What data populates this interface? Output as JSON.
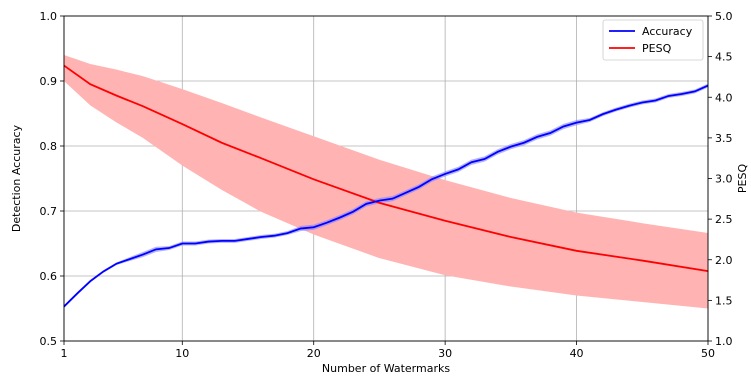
{
  "chart_data": {
    "type": "line",
    "xlabel": "Number of Watermarks",
    "ylabel_left": "Detection Accuracy",
    "ylabel_right": "PESQ",
    "xlim": [
      1,
      50
    ],
    "ylim_left": [
      0.5,
      1.0
    ],
    "ylim_right": [
      1.0,
      5.0
    ],
    "x_ticks": [
      1,
      10,
      20,
      30,
      40,
      50
    ],
    "y_left_ticks": [
      "0.5",
      "0.6",
      "0.7",
      "0.8",
      "0.9",
      "1.0"
    ],
    "y_right_ticks": [
      "1.0",
      "1.5",
      "2.0",
      "2.5",
      "3.0",
      "3.5",
      "4.0",
      "4.5",
      "5.0"
    ],
    "grid": true,
    "legend_position": "top-right",
    "series": [
      {
        "name": "Accuracy",
        "axis": "left",
        "color": "#0000ff",
        "band_color": "#8080ff",
        "x": [
          1,
          2,
          3,
          4,
          5,
          6,
          7,
          8,
          9,
          10,
          11,
          12,
          13,
          14,
          15,
          16,
          17,
          18,
          19,
          20,
          21,
          22,
          23,
          24,
          25,
          26,
          27,
          28,
          29,
          30,
          31,
          32,
          33,
          34,
          35,
          36,
          37,
          38,
          39,
          40,
          41,
          42,
          43,
          44,
          45,
          46,
          47,
          48,
          49,
          50
        ],
        "values": [
          0.553,
          0.573,
          0.592,
          0.607,
          0.619,
          0.626,
          0.633,
          0.641,
          0.643,
          0.65,
          0.65,
          0.653,
          0.654,
          0.654,
          0.657,
          0.66,
          0.662,
          0.666,
          0.673,
          0.675,
          0.682,
          0.69,
          0.699,
          0.711,
          0.716,
          0.719,
          0.728,
          0.737,
          0.749,
          0.757,
          0.764,
          0.775,
          0.78,
          0.791,
          0.799,
          0.805,
          0.814,
          0.82,
          0.83,
          0.836,
          0.84,
          0.849,
          0.856,
          0.862,
          0.867,
          0.87,
          0.877,
          0.88,
          0.884,
          0.893
        ],
        "band_halfwidth": [
          0.002,
          0.002,
          0.002,
          0.002,
          0.002,
          0.003,
          0.004,
          0.004,
          0.003,
          0.003,
          0.003,
          0.003,
          0.003,
          0.003,
          0.003,
          0.003,
          0.003,
          0.003,
          0.004,
          0.004,
          0.004,
          0.004,
          0.004,
          0.004,
          0.004,
          0.004,
          0.004,
          0.004,
          0.004,
          0.004,
          0.004,
          0.004,
          0.004,
          0.004,
          0.004,
          0.004,
          0.004,
          0.004,
          0.004,
          0.004,
          0.003,
          0.003,
          0.003,
          0.003,
          0.003,
          0.003,
          0.003,
          0.003,
          0.003,
          0.003
        ]
      },
      {
        "name": "PESQ",
        "axis": "right",
        "color": "#ff0000",
        "band_color": "#ffb3b3",
        "x": [
          1,
          3,
          5,
          7,
          10,
          13,
          16,
          20,
          25,
          30,
          35,
          40,
          45,
          50
        ],
        "values": [
          4.39,
          4.16,
          4.02,
          3.89,
          3.67,
          3.44,
          3.25,
          2.99,
          2.7,
          2.48,
          2.28,
          2.11,
          1.99,
          1.86
        ],
        "band_upper": [
          4.52,
          4.41,
          4.34,
          4.26,
          4.1,
          3.93,
          3.75,
          3.52,
          3.23,
          2.98,
          2.76,
          2.58,
          2.45,
          2.33
        ],
        "band_lower": [
          4.2,
          3.9,
          3.69,
          3.5,
          3.16,
          2.86,
          2.59,
          2.31,
          2.02,
          1.81,
          1.67,
          1.56,
          1.48,
          1.4
        ]
      }
    ]
  }
}
